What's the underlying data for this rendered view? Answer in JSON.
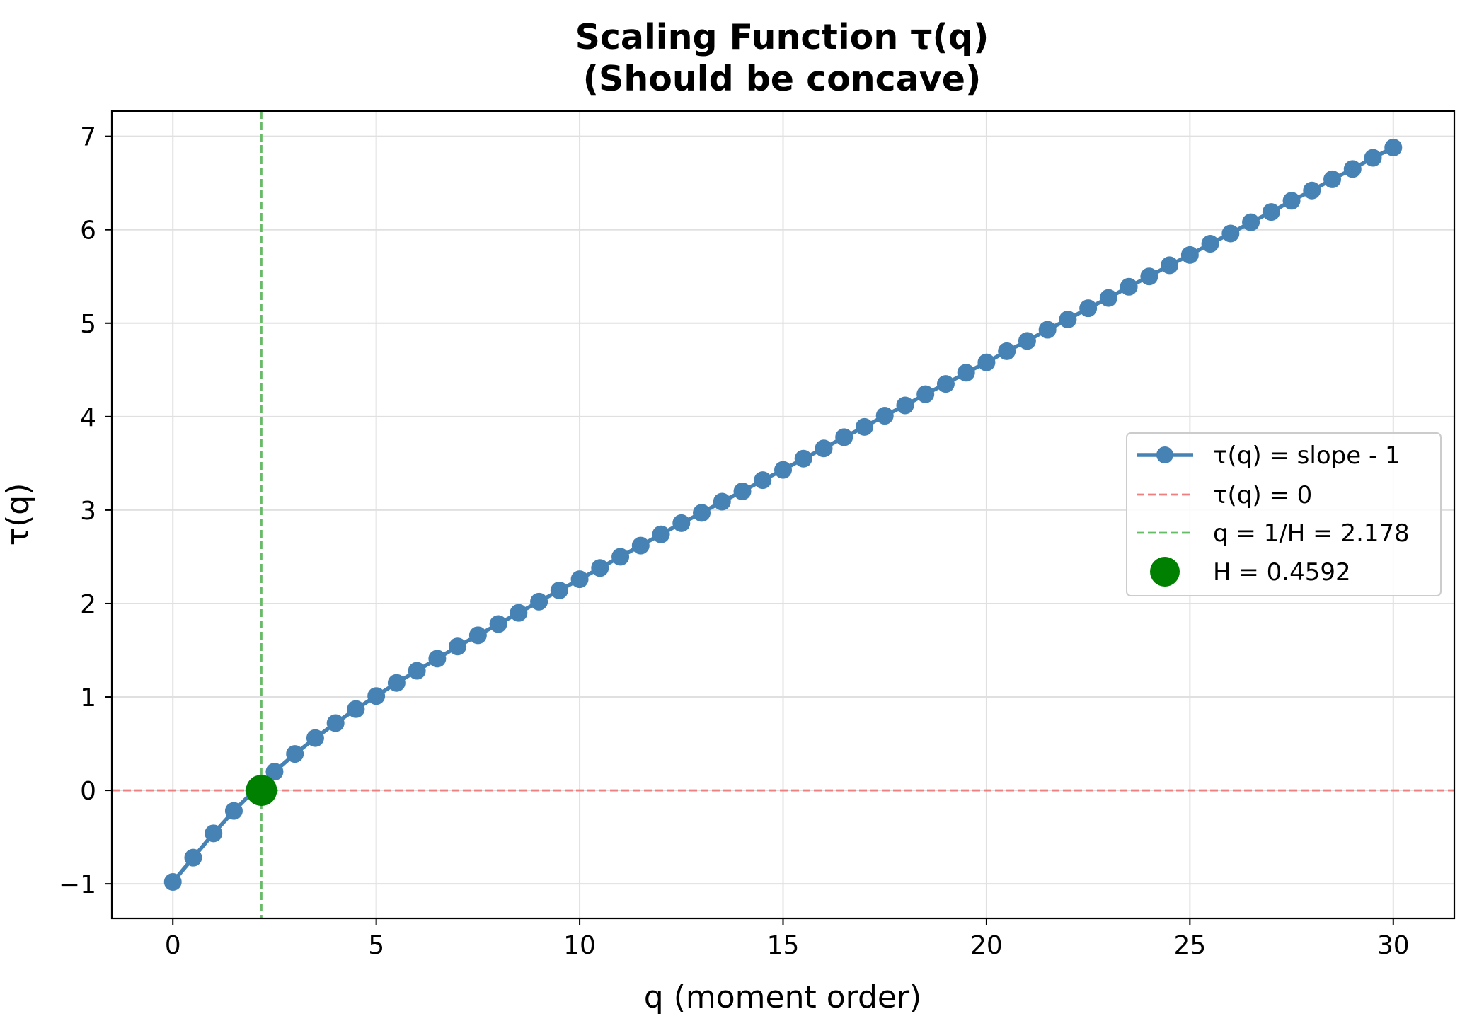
{
  "chart_data": {
    "type": "line",
    "title": "Scaling Function τ(q)",
    "subtitle": "(Should be concave)",
    "xlabel": "q (moment order)",
    "ylabel": "τ(q)",
    "xlim": [
      -1.5,
      31.5
    ],
    "ylim": [
      -1.37,
      7.27
    ],
    "xticks": [
      0,
      5,
      10,
      15,
      20,
      25,
      30
    ],
    "xtick_labels": [
      "0",
      "5",
      "10",
      "15",
      "20",
      "25",
      "30"
    ],
    "yticks": [
      -1,
      0,
      1,
      2,
      3,
      4,
      5,
      6,
      7
    ],
    "ytick_labels": [
      "−1",
      "0",
      "1",
      "2",
      "3",
      "4",
      "5",
      "6",
      "7"
    ],
    "grid": true,
    "legend_position": "center-right",
    "series": [
      {
        "name": "τ(q) = slope - 1",
        "color": "#4682b4",
        "marker": "circle",
        "x": [
          0,
          0.5,
          1,
          1.5,
          2,
          2.5,
          3,
          3.5,
          4,
          4.5,
          5,
          5.5,
          6,
          6.5,
          7,
          7.5,
          8,
          8.5,
          9,
          9.5,
          10,
          10.5,
          11,
          11.5,
          12,
          12.5,
          13,
          13.5,
          14,
          14.5,
          15,
          15.5,
          16,
          16.5,
          17,
          17.5,
          18,
          18.5,
          19,
          19.5,
          20,
          20.5,
          21,
          21.5,
          22,
          22.5,
          23,
          23.5,
          24,
          24.5,
          25,
          25.5,
          26,
          26.5,
          27,
          27.5,
          28,
          28.5,
          29,
          29.5,
          30
        ],
        "y": [
          -0.98,
          -0.72,
          -0.46,
          -0.22,
          0.0,
          0.2,
          0.39,
          0.56,
          0.72,
          0.87,
          1.01,
          1.15,
          1.28,
          1.41,
          1.54,
          1.66,
          1.78,
          1.9,
          2.02,
          2.14,
          2.26,
          2.38,
          2.5,
          2.62,
          2.74,
          2.86,
          2.97,
          3.09,
          3.2,
          3.32,
          3.43,
          3.55,
          3.66,
          3.78,
          3.89,
          4.01,
          4.12,
          4.24,
          4.35,
          4.47,
          4.58,
          4.7,
          4.81,
          4.93,
          5.04,
          5.16,
          5.27,
          5.39,
          5.5,
          5.62,
          5.73,
          5.85,
          5.96,
          6.08,
          6.19,
          6.31,
          6.42,
          6.54,
          6.65,
          6.77,
          6.88
        ]
      },
      {
        "name": "τ(q) = 0",
        "color": "#f08080",
        "style": "dashed",
        "orientation": "horizontal",
        "value": 0
      },
      {
        "name": "q = 1/H = 2.178",
        "color": "#66bb66",
        "style": "dashed",
        "orientation": "vertical",
        "value": 2.178
      },
      {
        "name": "H = 0.4592",
        "color": "#008000",
        "marker": "large-circle",
        "x": [
          2.178
        ],
        "y": [
          0
        ]
      }
    ]
  }
}
